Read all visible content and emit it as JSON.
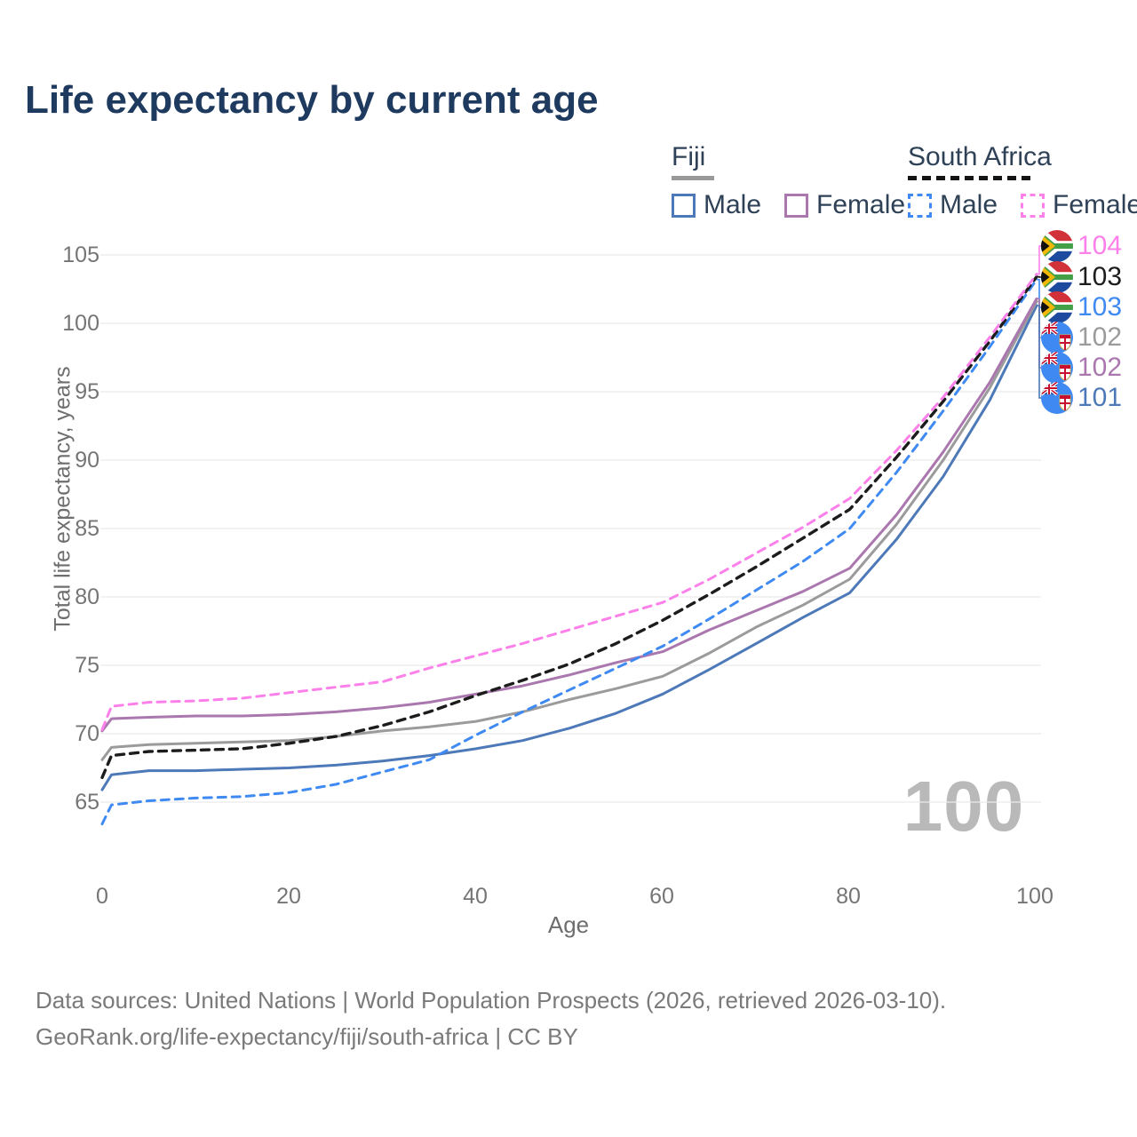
{
  "title": "Life expectancy by current age",
  "legend": {
    "groups": [
      {
        "country": "Fiji",
        "line_style": "solid",
        "underline_color": "#999999",
        "items": [
          {
            "label": "Male",
            "color": "#4d79b8",
            "dashed": false
          },
          {
            "label": "Female",
            "color": "#aa77ae",
            "dashed": false
          }
        ]
      },
      {
        "country": "South Africa",
        "line_style": "dashed",
        "underline_color": "#141414",
        "items": [
          {
            "label": "Male",
            "color": "#3f8af2",
            "dashed": true
          },
          {
            "label": "Female",
            "color": "#fb80e9",
            "dashed": true
          }
        ]
      }
    ]
  },
  "axes": {
    "y": {
      "label": "Total life expectancy, years",
      "ticks": [
        105,
        100,
        95,
        90,
        85,
        80,
        75,
        70,
        65
      ]
    },
    "x": {
      "label": "Age",
      "ticks": [
        0,
        20,
        40,
        60,
        80,
        100
      ]
    }
  },
  "watermark": "100",
  "end_labels": [
    {
      "value": "104",
      "flag": "south-africa",
      "color": "#fb80e9",
      "series": "South Africa Female"
    },
    {
      "value": "103",
      "flag": "south-africa",
      "color": "#1c1c1c",
      "series": "South Africa"
    },
    {
      "value": "103",
      "flag": "south-africa",
      "color": "#3f8af2",
      "series": "South Africa Male"
    },
    {
      "value": "102",
      "flag": "fiji",
      "color": "#9b9b9b",
      "series": "Fiji"
    },
    {
      "value": "102",
      "flag": "fiji",
      "color": "#aa77ae",
      "series": "Fiji Female"
    },
    {
      "value": "101",
      "flag": "fiji",
      "color": "#4d79b8",
      "series": "Fiji Male"
    }
  ],
  "source": {
    "line1": "Data sources: United Nations | World Population Prospects (2026, retrieved 2026-03-10).",
    "line2": "GeoRank.org/life-expectancy/fiji/south-africa | CC BY"
  },
  "chart_data": {
    "type": "line",
    "title": "Life expectancy by current age",
    "xlabel": "Age",
    "ylabel": "Total life expectancy, years",
    "xlim": [
      0,
      100
    ],
    "ylim": [
      62.5,
      106
    ],
    "yticks": [
      65,
      70,
      75,
      80,
      85,
      90,
      95,
      100,
      105
    ],
    "xticks": [
      0,
      20,
      40,
      60,
      80,
      100
    ],
    "grid": "horizontal",
    "legend_position": "top-right",
    "x": [
      0,
      1,
      5,
      10,
      15,
      20,
      25,
      30,
      35,
      40,
      45,
      50,
      55,
      60,
      65,
      70,
      75,
      80,
      85,
      90,
      95,
      100
    ],
    "series": [
      {
        "name": "Fiji Male",
        "country": "Fiji",
        "sex": "Male",
        "color": "#4d79b8",
        "dash": "solid",
        "values": [
          65.9,
          67.0,
          67.3,
          67.3,
          67.4,
          67.5,
          67.7,
          68.0,
          68.4,
          68.9,
          69.5,
          70.4,
          71.5,
          72.9,
          74.7,
          76.6,
          78.5,
          80.3,
          84.2,
          88.8,
          94.4,
          101.3
        ]
      },
      {
        "name": "Fiji",
        "country": "Fiji",
        "sex": "Both sexes",
        "color": "#9b9b9b",
        "dash": "solid",
        "values": [
          68.1,
          69.0,
          69.2,
          69.3,
          69.4,
          69.5,
          69.8,
          70.2,
          70.5,
          70.9,
          71.6,
          72.5,
          73.3,
          74.2,
          75.9,
          77.8,
          79.4,
          81.3,
          85.3,
          90.0,
          95.3,
          101.6
        ]
      },
      {
        "name": "Fiji Female",
        "country": "Fiji",
        "sex": "Female",
        "color": "#aa77ae",
        "dash": "solid",
        "values": [
          70.2,
          71.1,
          71.2,
          71.3,
          71.3,
          71.4,
          71.6,
          71.9,
          72.3,
          72.9,
          73.5,
          74.3,
          75.2,
          76.0,
          77.6,
          79.0,
          80.4,
          82.1,
          86.0,
          90.6,
          95.7,
          101.8
        ]
      },
      {
        "name": "South Africa Male",
        "country": "South Africa",
        "sex": "Male",
        "color": "#3f8af2",
        "dash": "dashed",
        "values": [
          63.4,
          64.8,
          65.1,
          65.3,
          65.4,
          65.7,
          66.3,
          67.2,
          68.1,
          69.9,
          71.6,
          73.2,
          74.8,
          76.4,
          78.4,
          80.5,
          82.6,
          85.0,
          89.1,
          93.6,
          98.3,
          103.2
        ]
      },
      {
        "name": "South Africa",
        "country": "South Africa",
        "sex": "Both sexes",
        "color": "#1c1c1c",
        "dash": "dashed",
        "values": [
          66.8,
          68.4,
          68.7,
          68.8,
          68.9,
          69.3,
          69.8,
          70.6,
          71.6,
          72.8,
          73.9,
          75.1,
          76.6,
          78.3,
          80.2,
          82.2,
          84.3,
          86.4,
          90.2,
          94.3,
          98.7,
          103.4
        ]
      },
      {
        "name": "South Africa Female",
        "country": "South Africa",
        "sex": "Female",
        "color": "#fb80e9",
        "dash": "dashed",
        "values": [
          70.3,
          72.0,
          72.3,
          72.4,
          72.6,
          73.0,
          73.4,
          73.8,
          74.8,
          75.7,
          76.6,
          77.6,
          78.6,
          79.6,
          81.3,
          83.2,
          85.1,
          87.2,
          90.7,
          94.6,
          99.0,
          103.6
        ]
      }
    ]
  }
}
